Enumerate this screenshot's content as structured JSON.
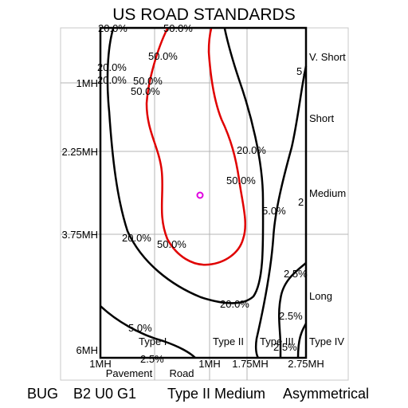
{
  "title": "US ROAD STANDARDS",
  "footer": {
    "bug": "BUG",
    "rating": "B2 U0 G1",
    "type": "Type II Medium",
    "symmetry": "Asymmetrical"
  },
  "y_axis_labels": [
    "1MH",
    "2.25MH",
    "3.75MH",
    "6MH"
  ],
  "x_axis_labels": [
    "1MH",
    "1MH",
    "1.75MH",
    "2.75MH"
  ],
  "x_axis_captions": {
    "pavement": "Pavement",
    "road": "Road"
  },
  "length_labels": [
    "V. Short",
    "Short",
    "Medium",
    "Long"
  ],
  "type_labels": [
    "Type I",
    "Type II",
    "Type III",
    "Type IV"
  ],
  "contour_labels": [
    "20.0%",
    "50.0%",
    "50.0%",
    "20.0%",
    "20.0%",
    "50.0%",
    "50.0%",
    "20.0%",
    "50.0%",
    "5.0%",
    "20.0%",
    "50.0%",
    "20.0%",
    "2.5%",
    "5.0%",
    "2.5%",
    "2.5%",
    "2.5%",
    "5.",
    "2"
  ],
  "colors": {
    "max_candela_line": "#e00000",
    "iso_lines": "#000000",
    "max_point": "#e000e0",
    "grid": "#b4b4b4"
  }
}
